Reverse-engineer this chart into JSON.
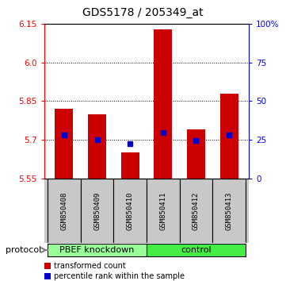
{
  "title": "GDS5178 / 205349_at",
  "samples": [
    "GSM850408",
    "GSM850409",
    "GSM850410",
    "GSM850411",
    "GSM850412",
    "GSM850413"
  ],
  "bar_tops": [
    5.82,
    5.8,
    5.65,
    6.13,
    5.74,
    5.88
  ],
  "bar_bottom": 5.55,
  "blue_dots": [
    5.718,
    5.7,
    5.685,
    5.728,
    5.698,
    5.718
  ],
  "ylim": [
    5.55,
    6.15
  ],
  "y_ticks_left": [
    5.55,
    5.7,
    5.85,
    6.0,
    6.15
  ],
  "y_ticks_right_vals": [
    0,
    25,
    50,
    75,
    100
  ],
  "y_ticks_right_pos": [
    5.55,
    5.7,
    5.85,
    6.0,
    6.15
  ],
  "grid_lines": [
    5.7,
    5.85,
    6.0
  ],
  "bar_color": "#cc0000",
  "dot_color": "#0000cc",
  "group1_label": "PBEF knockdown",
  "group2_label": "control",
  "group1_indices": [
    0,
    1,
    2
  ],
  "group2_indices": [
    3,
    4,
    5
  ],
  "group1_color": "#99ff99",
  "group2_color": "#44ee44",
  "label_bg_color": "#c8c8c8",
  "protocol_label": "protocol",
  "legend1": "transformed count",
  "legend2": "percentile rank within the sample",
  "bar_width": 0.55,
  "background_color": "#ffffff"
}
